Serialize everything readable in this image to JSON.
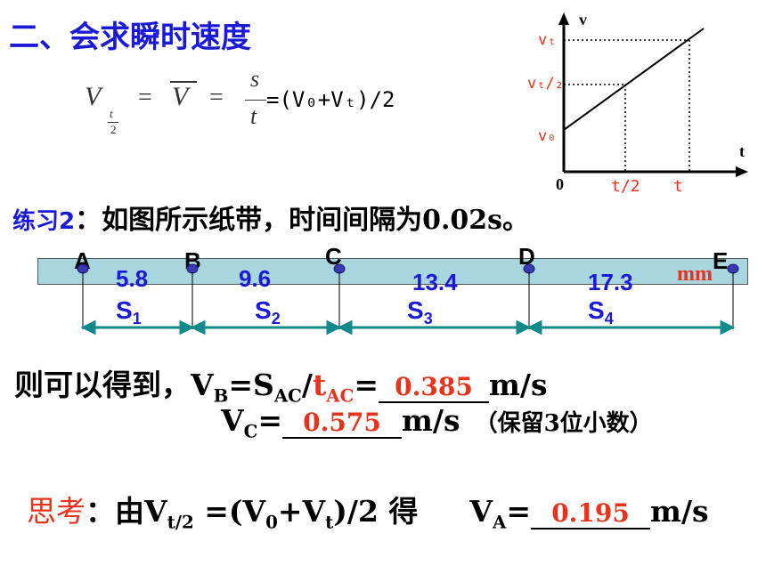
{
  "heading": "二、会求瞬时速度",
  "formula": {
    "lhs_v": "V",
    "lhs_sub": "t",
    "lhs_den": "2",
    "eq1": "=",
    "vbar": "V",
    "eq2": "=",
    "num": "s",
    "den": "t",
    "rhs": "=(V₀+Vₜ)/2"
  },
  "graph": {
    "axis_v": "v",
    "axis_t": "t",
    "origin": "0",
    "vt": "vₜ",
    "vt2": "vₜ/₂",
    "v0": "v₀",
    "t2": "t/2",
    "t": "t"
  },
  "practice": {
    "label": "练习2",
    "text": "：如图所示纸带，时间间隔为0.02s。"
  },
  "tape": {
    "points": [
      "A",
      "B",
      "C",
      "D",
      "E"
    ],
    "lengths": [
      "5.8",
      "9.6",
      "13.4",
      "17.3"
    ],
    "unit": "mm",
    "segments": [
      {
        "s": "S",
        "sub": "1"
      },
      {
        "s": "S",
        "sub": "2"
      },
      {
        "s": "S",
        "sub": "3"
      },
      {
        "s": "S",
        "sub": "4"
      }
    ]
  },
  "result1": {
    "prefix": "则可以得到，",
    "v": "V",
    "v_sub": "B",
    "mid": "=S",
    "s_sub": "AC",
    "slash": "/",
    "t": "t",
    "t_sub": "AC",
    "eq": "=",
    "answer": "0.385",
    "unit": "m/s"
  },
  "result2": {
    "v": "V",
    "v_sub": "C",
    "eq": "=",
    "answer": "0.575",
    "unit": "m/s",
    "note": "（保留3位小数）"
  },
  "think": {
    "label": "思考",
    "colon": "：由V",
    "sub1": "t/2",
    "mid1": " =(V",
    "sub2": "0",
    "mid2": "+V",
    "sub3": "t",
    "mid3": ")/2 得",
    "va": "V",
    "va_sub": "A",
    "eq": "=",
    "answer": "0.195",
    "unit": "m/s"
  }
}
